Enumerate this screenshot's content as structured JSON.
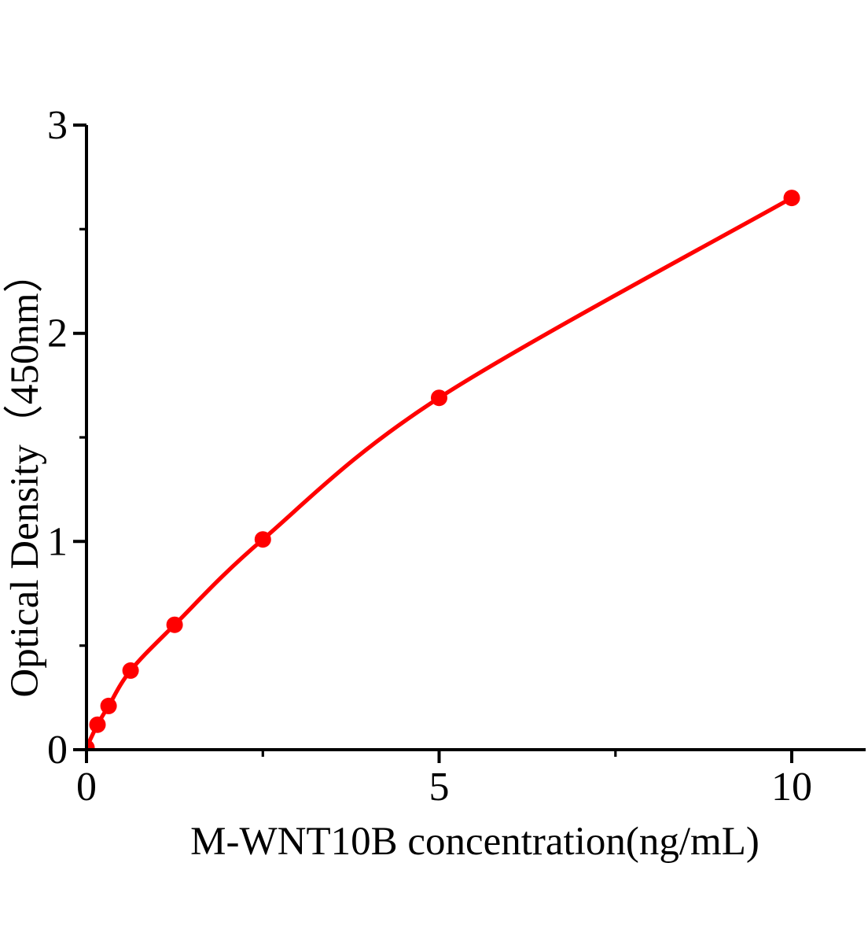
{
  "figure": {
    "background": "#ffffff"
  },
  "chart_data": {
    "type": "scatter",
    "title": "",
    "xlabel": "M-WNT10B concentration(ng/mL)",
    "ylabel": "Optical Density（450nm）",
    "x": [
      0,
      0.156,
      0.313,
      0.625,
      1.25,
      2.5,
      5,
      10
    ],
    "y": [
      0.01,
      0.12,
      0.21,
      0.38,
      0.6,
      1.01,
      1.69,
      2.65
    ],
    "xlim": [
      0,
      11.05
    ],
    "ylim": [
      0,
      3
    ],
    "x_major_ticks": [
      0,
      5,
      10
    ],
    "x_minor_ticks": [
      2.5,
      7.5
    ],
    "x_tick_labels": [
      "0",
      "5",
      "10"
    ],
    "y_major_ticks": [
      0,
      1,
      2,
      3
    ],
    "y_minor_ticks": [
      0.5,
      1.5,
      2.5
    ],
    "y_tick_labels": [
      "0",
      "1",
      "2",
      "3"
    ],
    "grid": false,
    "legend": "none",
    "curve_style": "smooth",
    "line_color": "#ff0000",
    "marker_color": "#ff0000",
    "marker_shape": "circle",
    "axis_color": "#000000",
    "text_color": "#000000"
  }
}
